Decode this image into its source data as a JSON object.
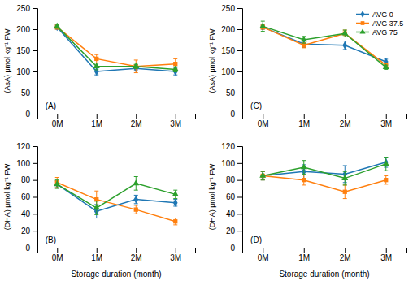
{
  "chart_data": [
    {
      "type": "line",
      "annotations": [
        "(A)"
      ],
      "ylabel": "(AsA) μmol kg⁻¹ FW",
      "categories": [
        "0M",
        "1M",
        "2M",
        "3M"
      ],
      "series": [
        {
          "marker": "diamond",
          "values": [
            205,
            100,
            107,
            100
          ],
          "errors": [
            5,
            8,
            5,
            8
          ]
        },
        {
          "marker": "square",
          "values": [
            205,
            130,
            112,
            118
          ],
          "errors": [
            5,
            10,
            15,
            12
          ]
        },
        {
          "marker": "triangle",
          "values": [
            207,
            112,
            112,
            105
          ],
          "errors": [
            5,
            8,
            5,
            6
          ]
        }
      ],
      "ylim": [
        0,
        250
      ],
      "yticks": [
        0,
        50,
        100,
        150,
        200,
        250
      ]
    },
    {
      "type": "line",
      "annotations": [
        "(C)"
      ],
      "ylabel": "(AsA) μmol kg⁻¹ FW",
      "categories": [
        "0M",
        "1M",
        "2M",
        "3M"
      ],
      "series": [
        {
          "name": "AVG 0",
          "marker": "diamond",
          "values": [
            205,
            165,
            162,
            123
          ],
          "errors": [
            5,
            8,
            10,
            6
          ]
        },
        {
          "name": "AVG 37.5",
          "marker": "square",
          "values": [
            205,
            162,
            190,
            115
          ],
          "errors": [
            5,
            6,
            8,
            5
          ]
        },
        {
          "name": "AVG 75",
          "marker": "triangle",
          "values": [
            207,
            175,
            190,
            110
          ],
          "errors": [
            12,
            8,
            8,
            5
          ]
        }
      ],
      "ylim": [
        0,
        250
      ],
      "yticks": [
        0,
        50,
        100,
        150,
        200,
        250
      ],
      "legend": "upper right"
    },
    {
      "type": "line",
      "annotations": [
        "(B)"
      ],
      "ylabel": "(DHA) μmol kg⁻¹ FW",
      "xlabel": "Storage duration  (month)",
      "categories": [
        "0M",
        "1M",
        "2M",
        "3M"
      ],
      "series": [
        {
          "marker": "diamond",
          "values": [
            75,
            43,
            57,
            53
          ],
          "errors": [
            4,
            8,
            5,
            4
          ]
        },
        {
          "marker": "square",
          "values": [
            77,
            57,
            45,
            31
          ],
          "errors": [
            6,
            10,
            5,
            4
          ]
        },
        {
          "marker": "triangle",
          "values": [
            75,
            47,
            76,
            63
          ],
          "errors": [
            5,
            8,
            8,
            5
          ]
        }
      ],
      "ylim": [
        0,
        120
      ],
      "yticks": [
        0,
        20,
        40,
        60,
        80,
        100,
        120
      ]
    },
    {
      "type": "line",
      "annotations": [
        "(D)"
      ],
      "ylabel": "(DHA) μmol kg⁻¹ FW",
      "xlabel": "Storage duration  (month)",
      "categories": [
        "0M",
        "1M",
        "2M",
        "3M"
      ],
      "series": [
        {
          "marker": "diamond",
          "values": [
            85,
            90,
            87,
            101
          ],
          "errors": [
            5,
            8,
            10,
            6
          ]
        },
        {
          "marker": "square",
          "values": [
            85,
            80,
            66,
            80
          ],
          "errors": [
            5,
            6,
            8,
            5
          ]
        },
        {
          "marker": "triangle",
          "values": [
            85,
            95,
            82,
            99
          ],
          "errors": [
            5,
            8,
            8,
            8
          ]
        }
      ],
      "ylim": [
        0,
        120
      ],
      "yticks": [
        0,
        20,
        40,
        60,
        80,
        100,
        120
      ]
    }
  ]
}
